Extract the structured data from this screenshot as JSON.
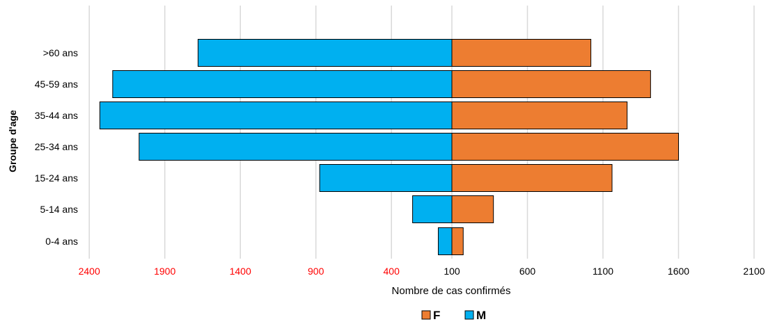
{
  "chart_data": {
    "type": "bar",
    "orientation": "horizontal-diverging",
    "ylabel": "Groupe d'age",
    "xlabel": "Nombre de cas confirmés",
    "categories": [
      "0-4 ans",
      "5-14 ans",
      "15-24 ans",
      "25-34 ans",
      "35-44 ans",
      "45-59 ans",
      ">60 ans"
    ],
    "series": [
      {
        "name": "F",
        "side": "right",
        "color": "#ED7D31",
        "values": [
          75,
          275,
          1060,
          1500,
          1160,
          1315,
          920
        ]
      },
      {
        "name": "M",
        "side": "left",
        "color": "#00B0F0",
        "values": [
          90,
          260,
          875,
          2070,
          2330,
          2245,
          1680
        ]
      }
    ],
    "x_ticks_left": [
      "2400",
      "1900",
      "1400",
      "900",
      "400"
    ],
    "x_ticks_right": [
      "100",
      "600",
      "1100",
      "1600",
      "2100"
    ],
    "x_tick_colors": {
      "left": "#FF0000",
      "right": "#000000"
    },
    "xlim": [
      -2400,
      2100
    ],
    "grid": true,
    "legend": "bottom-center"
  }
}
